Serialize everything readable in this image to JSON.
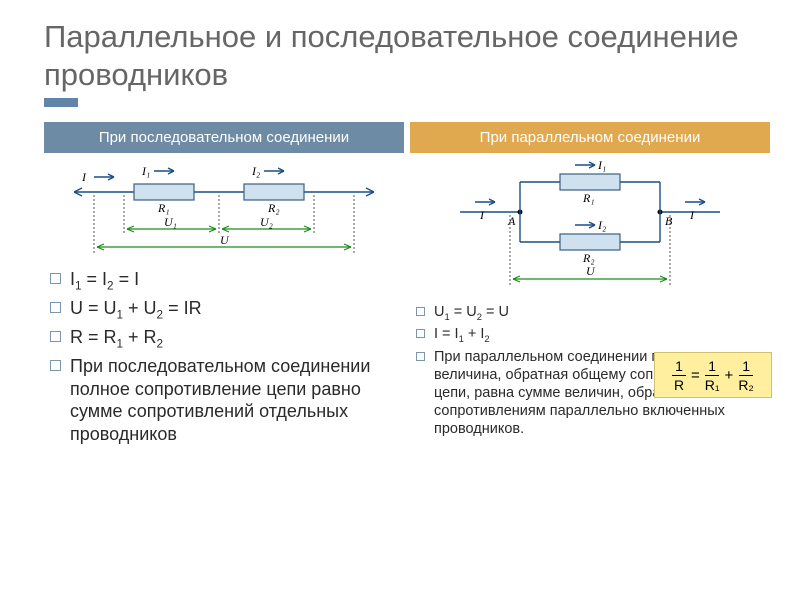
{
  "title": "Параллельное и последовательное соединение проводников",
  "colors": {
    "accent": "#6085a9",
    "header_left": "#6e8ba5",
    "header_right": "#e0a94f",
    "title_text": "#666666",
    "bullet_border": "#7c96ad",
    "resistor_fill": "#cfe1ee",
    "resistor_stroke": "#3b5f82",
    "wire": "#1a4f87",
    "arrow": "#1c8c1c",
    "formula_bg": "#ffef9e",
    "formula_border": "#d0c070"
  },
  "left": {
    "header": "При последовательном соединении",
    "eq1_html": "I<sub>1</sub> = I<sub>2</sub> = I",
    "eq2_html": "U = U<sub>1</sub> + U<sub>2</sub> = IR",
    "eq3_html": "R = R<sub>1</sub> + R<sub>2</sub>",
    "text": "При последовательном соединении полное сопротивление цепи равно сумме сопротивлений отдельных проводников",
    "diagram": {
      "I": "I",
      "I1": "I₁",
      "I2": "I₂",
      "R1": "R₁",
      "R2": "R₂",
      "U1": "U₁",
      "U2": "U₂",
      "U": "U"
    }
  },
  "right": {
    "header": "При параллельном соединении",
    "eq1_html": "U<sub>1</sub> = U<sub>2</sub> = U",
    "eq2_html": "I = I<sub>1</sub> + I<sub>2</sub>",
    "text": "При параллельном соединении проводников величина, обратная общему сопротивлению цепи, равна сумме величин, обратных сопротивлениям параллельно включенных проводников.",
    "diagram": {
      "I": "I",
      "I1": "I₁",
      "I2": "I₂",
      "R1": "R₁",
      "R2": "R₂",
      "A": "A",
      "B": "B",
      "U": "U"
    },
    "formula": {
      "lhs_n": "1",
      "lhs_d": "R",
      "r1_n": "1",
      "r1_d": "R₁",
      "r2_n": "1",
      "r2_d": "R₂"
    }
  }
}
